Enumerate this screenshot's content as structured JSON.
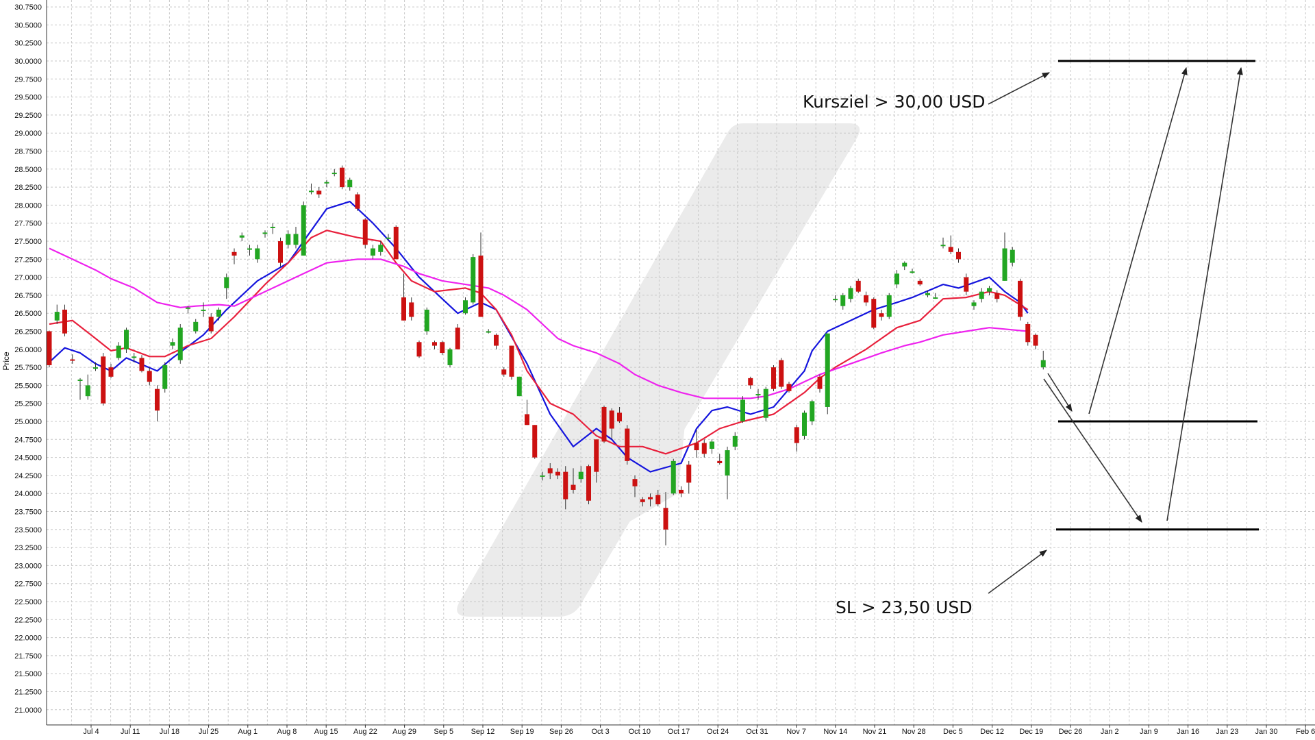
{
  "chart_data": {
    "type": "candlestick",
    "ylabel": "Price",
    "ylim": [
      20.85,
      30.8
    ],
    "ytick_step": 0.25,
    "ytick_labels": [
      "21.0000",
      "21.2500",
      "21.5000",
      "21.7500",
      "22.0000",
      "22.2500",
      "22.5000",
      "22.7500",
      "23.0000",
      "23.2500",
      "23.5000",
      "23.7500",
      "24.0000",
      "24.2500",
      "24.5000",
      "24.7500",
      "25.0000",
      "25.2500",
      "25.5000",
      "25.7500",
      "26.0000",
      "26.2500",
      "26.5000",
      "26.7500",
      "27.0000",
      "27.2500",
      "27.5000",
      "27.7500",
      "28.0000",
      "28.2500",
      "28.5000",
      "28.7500",
      "29.0000",
      "29.2500",
      "29.5000",
      "29.7500",
      "30.0000",
      "30.2500",
      "30.5000",
      "30.7500"
    ],
    "xtick_labels": [
      "Jul 4",
      "Jul 11",
      "Jul 18",
      "Jul 25",
      "Aug 1",
      "Aug 8",
      "Aug 15",
      "Aug 22",
      "Aug 29",
      "Sep 5",
      "Sep 12",
      "Sep 19",
      "Sep 26",
      "Oct 3",
      "Oct 10",
      "Oct 17",
      "Oct 24",
      "Oct 31",
      "Nov 7",
      "Nov 14",
      "Nov 21",
      "Nov 28",
      "Dec 5",
      "Dec 12",
      "Dec 19",
      "Dec 26",
      "Jan 2",
      "Jan 9",
      "Jan 16",
      "Jan 23",
      "Jan 30",
      "Feb 6"
    ],
    "grid": true,
    "colors": {
      "up": "#22a622",
      "down": "#cc1111",
      "ma_fast": "#1515dd",
      "ma_mid": "#e8203c",
      "ma_slow": "#ee22ee",
      "grid": "#c8c8c8",
      "levels": "#000000",
      "watermark": "#ebebeb"
    },
    "candles": [
      [
        26.25,
        25.78,
        26.26,
        25.75
      ],
      [
        26.4,
        26.52,
        26.62,
        26.35
      ],
      [
        26.55,
        26.22,
        26.62,
        26.18
      ],
      [
        25.86,
        25.85,
        25.93,
        25.8
      ],
      [
        25.58,
        25.58,
        25.6,
        25.3
      ],
      [
        25.35,
        25.5,
        25.65,
        25.3
      ],
      [
        25.75,
        25.75,
        25.82,
        25.7
      ],
      [
        25.9,
        25.25,
        25.95,
        25.22
      ],
      [
        25.75,
        25.62,
        25.8,
        25.6
      ],
      [
        25.88,
        26.05,
        26.1,
        25.85
      ],
      [
        26.0,
        26.27,
        26.3,
        25.95
      ],
      [
        25.9,
        25.9,
        25.95,
        25.82
      ],
      [
        25.88,
        25.7,
        25.92,
        25.68
      ],
      [
        25.7,
        25.55,
        25.75,
        25.5
      ],
      [
        25.45,
        25.15,
        25.5,
        25.0
      ],
      [
        25.45,
        25.78,
        25.82,
        25.4
      ],
      [
        26.05,
        26.1,
        26.15,
        26.0
      ],
      [
        25.85,
        26.3,
        26.35,
        25.8
      ],
      [
        26.58,
        26.58,
        26.6,
        26.5
      ],
      [
        26.25,
        26.38,
        26.42,
        26.22
      ],
      [
        26.55,
        26.55,
        26.65,
        26.45
      ],
      [
        26.45,
        26.25,
        26.5,
        26.22
      ],
      [
        26.45,
        26.55,
        26.58,
        26.4
      ],
      [
        26.85,
        27.0,
        27.05,
        26.7
      ],
      [
        27.35,
        27.3,
        27.4,
        27.18
      ],
      [
        27.55,
        27.58,
        27.62,
        27.5
      ],
      [
        27.4,
        27.4,
        27.45,
        27.3
      ],
      [
        27.25,
        27.4,
        27.45,
        27.2
      ],
      [
        27.62,
        27.62,
        27.65,
        27.55
      ],
      [
        27.7,
        27.7,
        27.75,
        27.6
      ],
      [
        27.5,
        27.2,
        27.55,
        27.15
      ],
      [
        27.45,
        27.6,
        27.65,
        27.4
      ],
      [
        27.45,
        27.6,
        27.7,
        27.4
      ],
      [
        27.3,
        28.0,
        28.05,
        27.3
      ],
      [
        28.2,
        28.2,
        28.3,
        28.15
      ],
      [
        28.2,
        28.15,
        28.25,
        28.1
      ],
      [
        28.32,
        28.32,
        28.35,
        28.25
      ],
      [
        28.45,
        28.45,
        28.5,
        28.4
      ],
      [
        28.52,
        28.25,
        28.55,
        28.22
      ],
      [
        28.25,
        28.35,
        28.38,
        28.2
      ],
      [
        28.15,
        27.95,
        28.18,
        27.92
      ],
      [
        27.8,
        27.45,
        27.82,
        27.4
      ],
      [
        27.3,
        27.4,
        27.45,
        27.25
      ],
      [
        27.35,
        27.45,
        27.5,
        27.3
      ],
      [
        27.55,
        27.55,
        27.6,
        27.5
      ],
      [
        27.7,
        27.25,
        27.72,
        27.25
      ],
      [
        26.72,
        26.4,
        27.05,
        26.4
      ],
      [
        26.65,
        26.45,
        26.72,
        26.4
      ],
      [
        26.1,
        25.9,
        26.12,
        25.88
      ],
      [
        26.25,
        26.55,
        26.58,
        26.2
      ],
      [
        26.1,
        26.05,
        26.12,
        26.0
      ],
      [
        26.1,
        25.95,
        26.12,
        25.92
      ],
      [
        25.78,
        26.0,
        26.02,
        25.75
      ],
      [
        26.3,
        26.0,
        26.35,
        26.0
      ],
      [
        26.5,
        26.68,
        26.72,
        26.48
      ],
      [
        26.65,
        27.28,
        27.32,
        26.62
      ],
      [
        27.3,
        26.45,
        27.62,
        26.45
      ],
      [
        26.25,
        26.25,
        26.28,
        26.22
      ],
      [
        26.2,
        26.05,
        26.22,
        26.0
      ],
      [
        25.72,
        25.65,
        25.75,
        25.62
      ],
      [
        26.05,
        25.62,
        26.05,
        25.58
      ],
      [
        25.35,
        25.62,
        25.62,
        25.35
      ],
      [
        25.1,
        24.95,
        25.3,
        24.95
      ],
      [
        24.95,
        24.5,
        24.95,
        24.48
      ],
      [
        24.25,
        24.25,
        24.3,
        24.18
      ],
      [
        24.35,
        24.28,
        24.42,
        24.2
      ],
      [
        24.3,
        24.25,
        24.35,
        24.2
      ],
      [
        24.3,
        23.92,
        24.38,
        23.78
      ],
      [
        24.12,
        24.05,
        24.35,
        24.0
      ],
      [
        24.2,
        24.3,
        24.38,
        24.15
      ],
      [
        24.38,
        23.9,
        24.4,
        23.85
      ],
      [
        24.75,
        24.3,
        24.75,
        24.15
      ],
      [
        25.2,
        24.72,
        25.22,
        24.7
      ],
      [
        25.15,
        24.9,
        25.18,
        24.75
      ],
      [
        25.12,
        25.0,
        25.2,
        24.98
      ],
      [
        24.9,
        24.45,
        24.95,
        24.4
      ],
      [
        24.2,
        24.1,
        24.25,
        23.95
      ],
      [
        23.92,
        23.88,
        23.95,
        23.82
      ],
      [
        23.95,
        23.92,
        24.0,
        23.82
      ],
      [
        23.98,
        23.85,
        24.05,
        23.82
      ],
      [
        23.8,
        23.5,
        24.02,
        23.28
      ],
      [
        24.0,
        24.45,
        24.48,
        23.98
      ],
      [
        24.05,
        24.0,
        24.1,
        23.95
      ],
      [
        24.4,
        24.15,
        24.45,
        24.0
      ],
      [
        24.7,
        24.6,
        24.88,
        24.5
      ],
      [
        24.7,
        24.55,
        24.75,
        24.5
      ],
      [
        24.62,
        24.72,
        24.75,
        24.55
      ],
      [
        24.45,
        24.42,
        24.55,
        24.4
      ],
      [
        24.25,
        24.6,
        24.65,
        23.92
      ],
      [
        24.65,
        24.8,
        24.85,
        24.6
      ],
      [
        25.0,
        25.3,
        25.35,
        24.98
      ],
      [
        25.6,
        25.5,
        25.62,
        25.45
      ],
      [
        25.38,
        25.38,
        25.45,
        25.3
      ],
      [
        25.05,
        25.45,
        25.48,
        25.0
      ],
      [
        25.75,
        25.45,
        25.78,
        25.42
      ],
      [
        25.85,
        25.48,
        25.88,
        25.45
      ],
      [
        25.52,
        25.42,
        25.55,
        25.4
      ],
      [
        24.92,
        24.7,
        24.95,
        24.58
      ],
      [
        24.8,
        25.12,
        25.15,
        24.75
      ],
      [
        25.0,
        25.28,
        25.3,
        24.95
      ],
      [
        25.62,
        25.45,
        25.65,
        25.4
      ],
      [
        25.2,
        26.22,
        26.22,
        25.1
      ],
      [
        26.7,
        26.7,
        26.75,
        26.65
      ],
      [
        26.6,
        26.75,
        26.78,
        26.55
      ],
      [
        26.7,
        26.85,
        26.88,
        26.65
      ],
      [
        26.95,
        26.8,
        26.98,
        26.78
      ],
      [
        26.75,
        26.65,
        26.8,
        26.6
      ],
      [
        26.7,
        26.3,
        26.72,
        26.28
      ],
      [
        26.5,
        26.45,
        26.55,
        26.4
      ],
      [
        26.45,
        26.75,
        26.78,
        26.42
      ],
      [
        26.9,
        27.05,
        27.1,
        26.85
      ],
      [
        27.15,
        27.2,
        27.22,
        27.1
      ],
      [
        27.08,
        27.08,
        27.12,
        27.05
      ],
      [
        26.95,
        26.9,
        26.98,
        26.88
      ],
      [
        26.75,
        26.78,
        26.82,
        26.72
      ],
      [
        26.72,
        26.72,
        26.78,
        26.7
      ],
      [
        27.45,
        27.45,
        27.55,
        27.4
      ],
      [
        27.42,
        27.35,
        27.58,
        27.32
      ],
      [
        27.35,
        27.25,
        27.4,
        27.2
      ],
      [
        27.0,
        26.8,
        27.05,
        26.75
      ],
      [
        26.6,
        26.65,
        26.68,
        26.55
      ],
      [
        26.7,
        26.8,
        26.85,
        26.65
      ],
      [
        26.8,
        26.85,
        26.88,
        26.75
      ],
      [
        26.78,
        26.7,
        26.82,
        26.65
      ],
      [
        26.95,
        27.4,
        27.62,
        26.95
      ],
      [
        27.2,
        27.38,
        27.42,
        27.15
      ],
      [
        26.95,
        26.45,
        26.98,
        26.4
      ],
      [
        26.35,
        26.1,
        26.38,
        26.05
      ],
      [
        26.2,
        26.05,
        26.22,
        26.0
      ],
      [
        25.75,
        25.85,
        25.98,
        25.72
      ]
    ],
    "moving_averages": [
      {
        "name": "",
        "color": "#1515dd",
        "x": [
          0,
          2,
          4,
          6,
          8,
          10,
          14,
          16,
          20,
          23,
          27,
          31,
          36,
          39,
          42,
          45,
          48,
          50,
          53,
          56,
          58,
          62,
          65,
          68,
          71,
          73,
          75,
          78,
          82,
          84,
          86,
          88,
          91,
          94,
          98,
          99,
          101,
          104,
          107,
          110,
          112,
          116,
          118,
          122,
          124,
          126,
          127
        ],
        "y": [
          25.82,
          26.02,
          25.95,
          25.8,
          25.7,
          25.88,
          25.7,
          25.88,
          26.2,
          26.55,
          26.95,
          27.2,
          27.95,
          28.05,
          27.75,
          27.4,
          27.0,
          26.8,
          26.5,
          26.65,
          26.55,
          25.8,
          25.1,
          24.65,
          24.9,
          24.75,
          24.5,
          24.3,
          24.42,
          24.9,
          25.15,
          25.2,
          25.1,
          25.2,
          25.7,
          25.98,
          26.25,
          26.4,
          26.55,
          26.65,
          26.72,
          26.9,
          26.85,
          27.0,
          26.8,
          26.65,
          26.5
        ]
      },
      {
        "name": "",
        "color": "#e8203c",
        "x": [
          0,
          3,
          6,
          8,
          10,
          13,
          15,
          18,
          21,
          24,
          28,
          31,
          34,
          36,
          38,
          40,
          43,
          45,
          47,
          50,
          54,
          56,
          58,
          60,
          62,
          65,
          68,
          71,
          74,
          77,
          80,
          84,
          87,
          90,
          94,
          98,
          100,
          102,
          106,
          110,
          113,
          116,
          119,
          122,
          124,
          127
        ],
        "y": [
          26.35,
          26.4,
          26.15,
          25.98,
          26.02,
          25.9,
          25.9,
          26.05,
          26.15,
          26.45,
          26.9,
          27.2,
          27.55,
          27.65,
          27.6,
          27.55,
          27.5,
          27.2,
          26.95,
          26.8,
          26.85,
          26.78,
          26.55,
          26.2,
          25.7,
          25.25,
          25.1,
          24.8,
          24.65,
          24.65,
          24.55,
          24.7,
          24.9,
          25.0,
          25.1,
          25.4,
          25.6,
          25.75,
          26.0,
          26.3,
          26.4,
          26.7,
          26.72,
          26.8,
          26.75,
          26.55
        ]
      },
      {
        "name": "",
        "color": "#ee22ee",
        "x": [
          0,
          3,
          6,
          8,
          11,
          14,
          17,
          19,
          22,
          24,
          27,
          30,
          33,
          36,
          40,
          43,
          46,
          48,
          51,
          54,
          57,
          59,
          62,
          64,
          66,
          68,
          71,
          74,
          76,
          79,
          82,
          85,
          88,
          91,
          93,
          96,
          98,
          100,
          104,
          108,
          111,
          113,
          116,
          119,
          122,
          124,
          127
        ],
        "y": [
          27.4,
          27.25,
          27.1,
          26.98,
          26.85,
          26.65,
          26.58,
          26.6,
          26.62,
          26.6,
          26.75,
          26.9,
          27.05,
          27.2,
          27.25,
          27.25,
          27.15,
          27.05,
          26.95,
          26.9,
          26.85,
          26.75,
          26.55,
          26.35,
          26.15,
          26.05,
          25.95,
          25.8,
          25.65,
          25.5,
          25.4,
          25.32,
          25.32,
          25.32,
          25.35,
          25.45,
          25.55,
          25.65,
          25.8,
          25.95,
          26.05,
          26.1,
          26.2,
          26.25,
          26.3,
          26.28,
          26.25
        ]
      }
    ],
    "levels": [
      30.0,
      25.0,
      23.5
    ],
    "annotations": [
      {
        "text": "Kursziel > 30,00 USD"
      },
      {
        "text": "SL > 23,50 USD"
      }
    ]
  }
}
